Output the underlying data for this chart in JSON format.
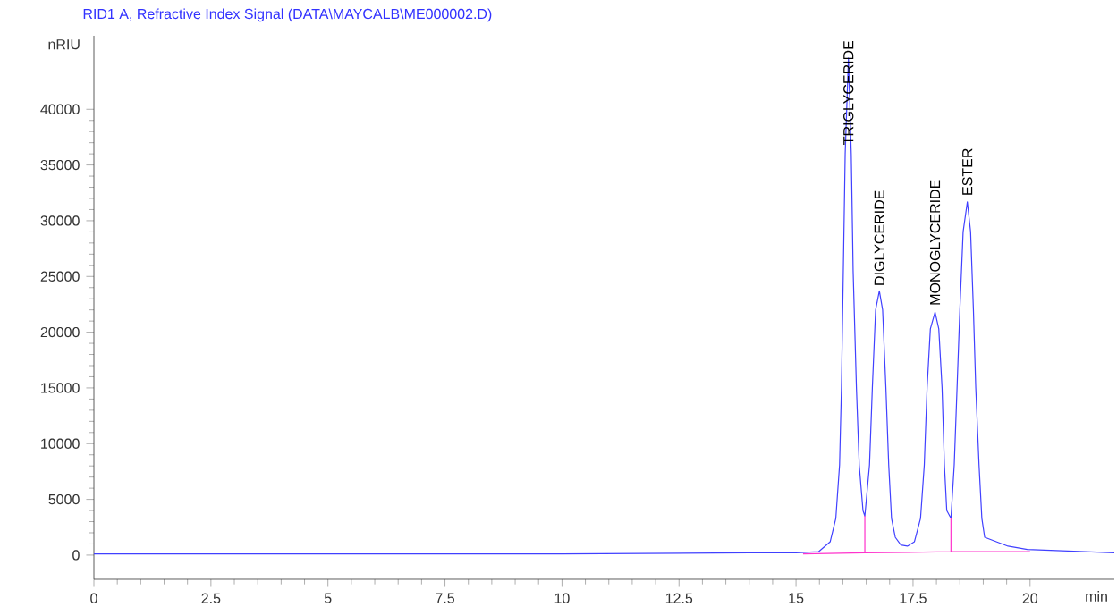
{
  "chart_data": {
    "type": "line",
    "title": "RID1 A, Refractive Index Signal (DATA\\MAYCALB\\ME000002.D)",
    "xlabel": "min",
    "ylabel": "nRIU",
    "xlim": [
      0,
      21.8
    ],
    "ylim": [
      -2170,
      46600
    ],
    "xticks": [
      0,
      2.5,
      5,
      7.5,
      10,
      12.5,
      15,
      17.5,
      20
    ],
    "yticks": [
      0,
      5000,
      10000,
      15000,
      20000,
      25000,
      30000,
      35000,
      40000
    ],
    "grid": false,
    "marker": "none",
    "line_style": "solid",
    "series": [
      {
        "color": "#4040ff",
        "x": [
          0,
          5,
          10,
          14,
          15,
          15.48,
          15.73,
          15.85,
          15.93,
          15.97,
          16.01,
          16.05,
          16.12,
          16.18,
          16.22,
          16.29,
          16.35,
          16.43,
          16.47,
          16.57,
          16.63,
          16.7,
          16.78,
          16.85,
          16.92,
          16.98,
          17.04,
          17.12,
          17.24,
          17.38,
          17.53,
          17.66,
          17.74,
          17.8,
          17.87,
          17.97,
          18.05,
          18.12,
          18.17,
          18.22,
          18.31,
          18.38,
          18.44,
          18.5,
          18.57,
          18.66,
          18.73,
          18.79,
          18.84,
          18.91,
          18.97,
          19.03,
          19.53,
          19.94,
          21.8
        ],
        "values": [
          100,
          100,
          100,
          200,
          200,
          300,
          1200,
          3300,
          8100,
          15000,
          25500,
          36000,
          44600,
          36000,
          25500,
          15000,
          8100,
          4000,
          3500,
          8100,
          15000,
          22000,
          23700,
          22000,
          15000,
          8100,
          3300,
          1600,
          900,
          800,
          1200,
          3300,
          8100,
          15000,
          20300,
          21800,
          20300,
          15000,
          8100,
          4000,
          3300,
          8100,
          15000,
          22000,
          29000,
          31700,
          29000,
          22000,
          15000,
          8100,
          3300,
          1600,
          800,
          500,
          200
        ]
      },
      {
        "color": "#ff33cc",
        "x": [
          15.15,
          16.47,
          16.47,
          16.47,
          18.31,
          18.31,
          18.31,
          20.0
        ],
        "values": [
          100,
          200,
          3500,
          200,
          300,
          3300,
          300,
          300
        ]
      }
    ],
    "annotations": [
      {
        "text": "TRIGLYCERIDE",
        "x": 16.12,
        "y": 36600
      },
      {
        "text": "DIGLYCERIDE",
        "x": 16.78,
        "y": 23950
      },
      {
        "text": "MONOGLYCERIDE",
        "x": 17.97,
        "y": 22200
      },
      {
        "text": "ESTER",
        "x": 18.66,
        "y": 32050
      }
    ]
  }
}
